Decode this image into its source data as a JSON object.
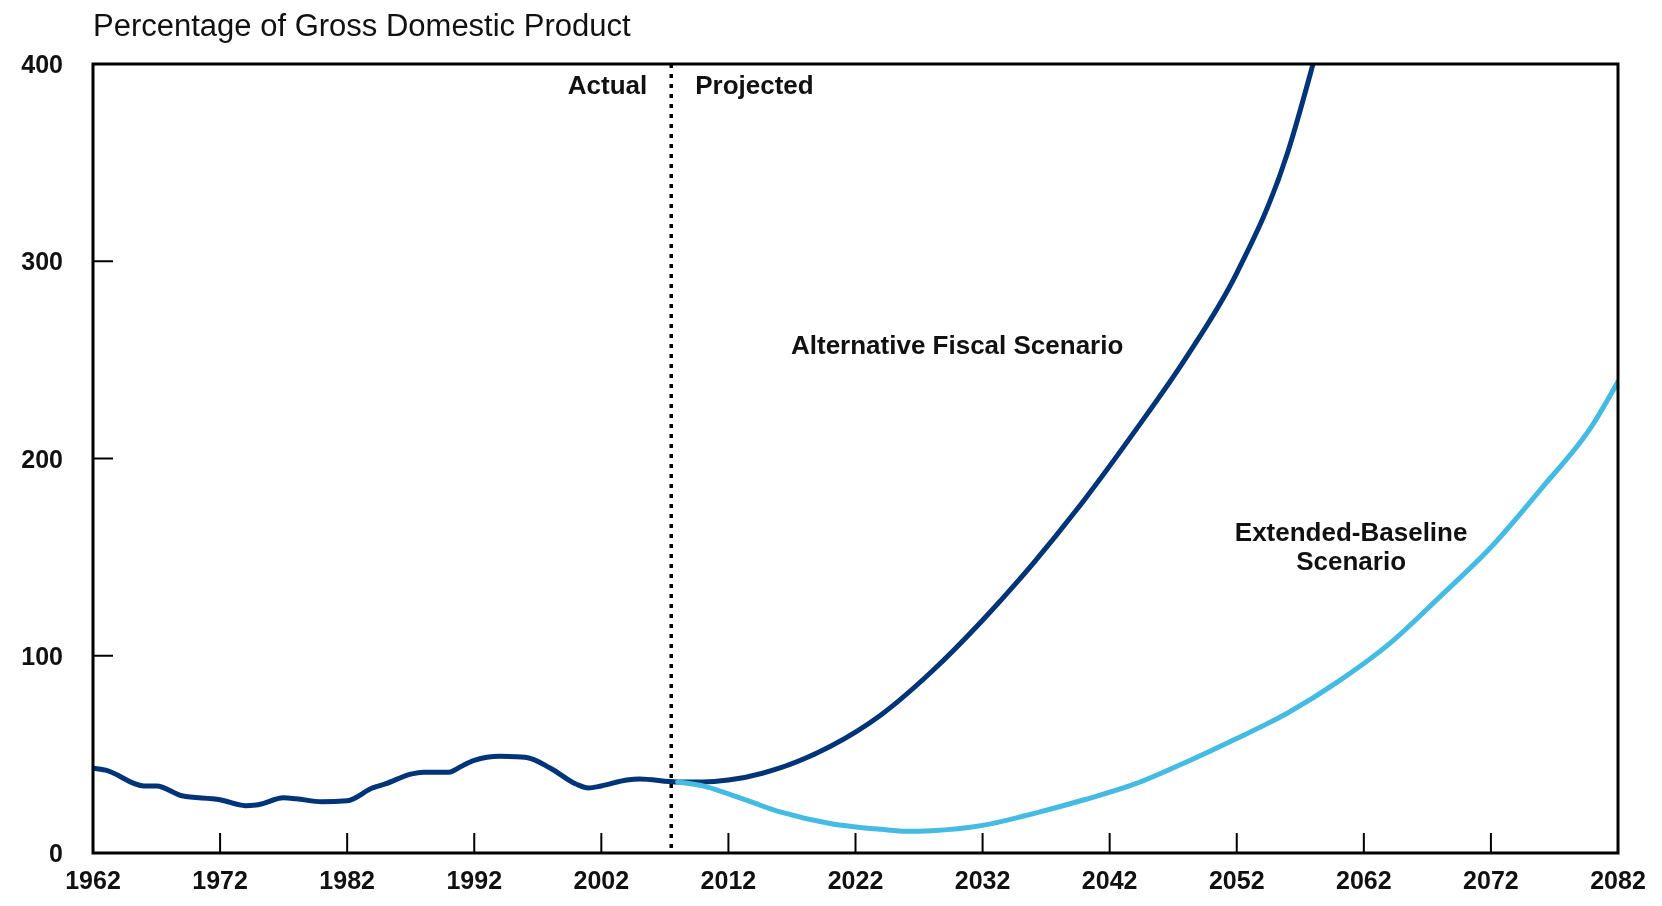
{
  "chart_data": {
    "type": "line",
    "ylabel": "Percentage of Gross Domestic Product",
    "xlim": [
      1962,
      2082
    ],
    "xticks": [
      1962,
      1972,
      1982,
      1992,
      2002,
      2012,
      2022,
      2032,
      2042,
      2052,
      2062,
      2072,
      2082
    ],
    "ylim": [
      0,
      400
    ],
    "yticks": [
      0,
      100,
      200,
      300,
      400
    ],
    "grid": false,
    "line_style": "solid",
    "marker": "none",
    "series": [
      {
        "name": "Alternative Fiscal Scenario",
        "color": "#003478",
        "x": [
          1962,
          1963,
          1966,
          1967,
          1969,
          1972,
          1974,
          1975,
          1977,
          1978,
          1980,
          1982,
          1984,
          1985,
          1987,
          1988,
          1990,
          1991,
          1992,
          1994,
          1996,
          1998,
          2000,
          2001,
          2002,
          2004,
          2005,
          2008,
          2010,
          2012,
          2016,
          2020,
          2024,
          2028,
          2032,
          2036,
          2040,
          2044,
          2048,
          2052,
          2056,
          2058
        ],
        "values": [
          43,
          42,
          34,
          34,
          29,
          27,
          24,
          24.5,
          28,
          27.5,
          26,
          26.5,
          33,
          35,
          40,
          41,
          41,
          44,
          47,
          49,
          48.5,
          43,
          35,
          33,
          34,
          37,
          37.5,
          36,
          36,
          37,
          43,
          54,
          70,
          92,
          118,
          147,
          179,
          214,
          251,
          294,
          355,
          400
        ]
      },
      {
        "name": "Extended-Baseline Scenario",
        "color": "#45bbe3",
        "x": [
          2008,
          2010,
          2012,
          2016,
          2020,
          2024,
          2026,
          2028,
          2032,
          2036,
          2040,
          2044,
          2048,
          2052,
          2056,
          2060,
          2064,
          2068,
          2072,
          2076,
          2080,
          2082
        ],
        "values": [
          36,
          34,
          30,
          21,
          15,
          12,
          11,
          11.3,
          14,
          20,
          27,
          35,
          46,
          58,
          71,
          87,
          106,
          130,
          155,
          185,
          217,
          239
        ]
      }
    ],
    "ref_lines": [
      {
        "axis": "x",
        "value": 2007.5,
        "line_style": "dotted",
        "color": "#000000"
      }
    ],
    "annotations": [
      {
        "text": "Actual",
        "x": 2007.5,
        "y": 385
      },
      {
        "text": "Projected",
        "x": 2007.5,
        "y": 385
      }
    ]
  }
}
